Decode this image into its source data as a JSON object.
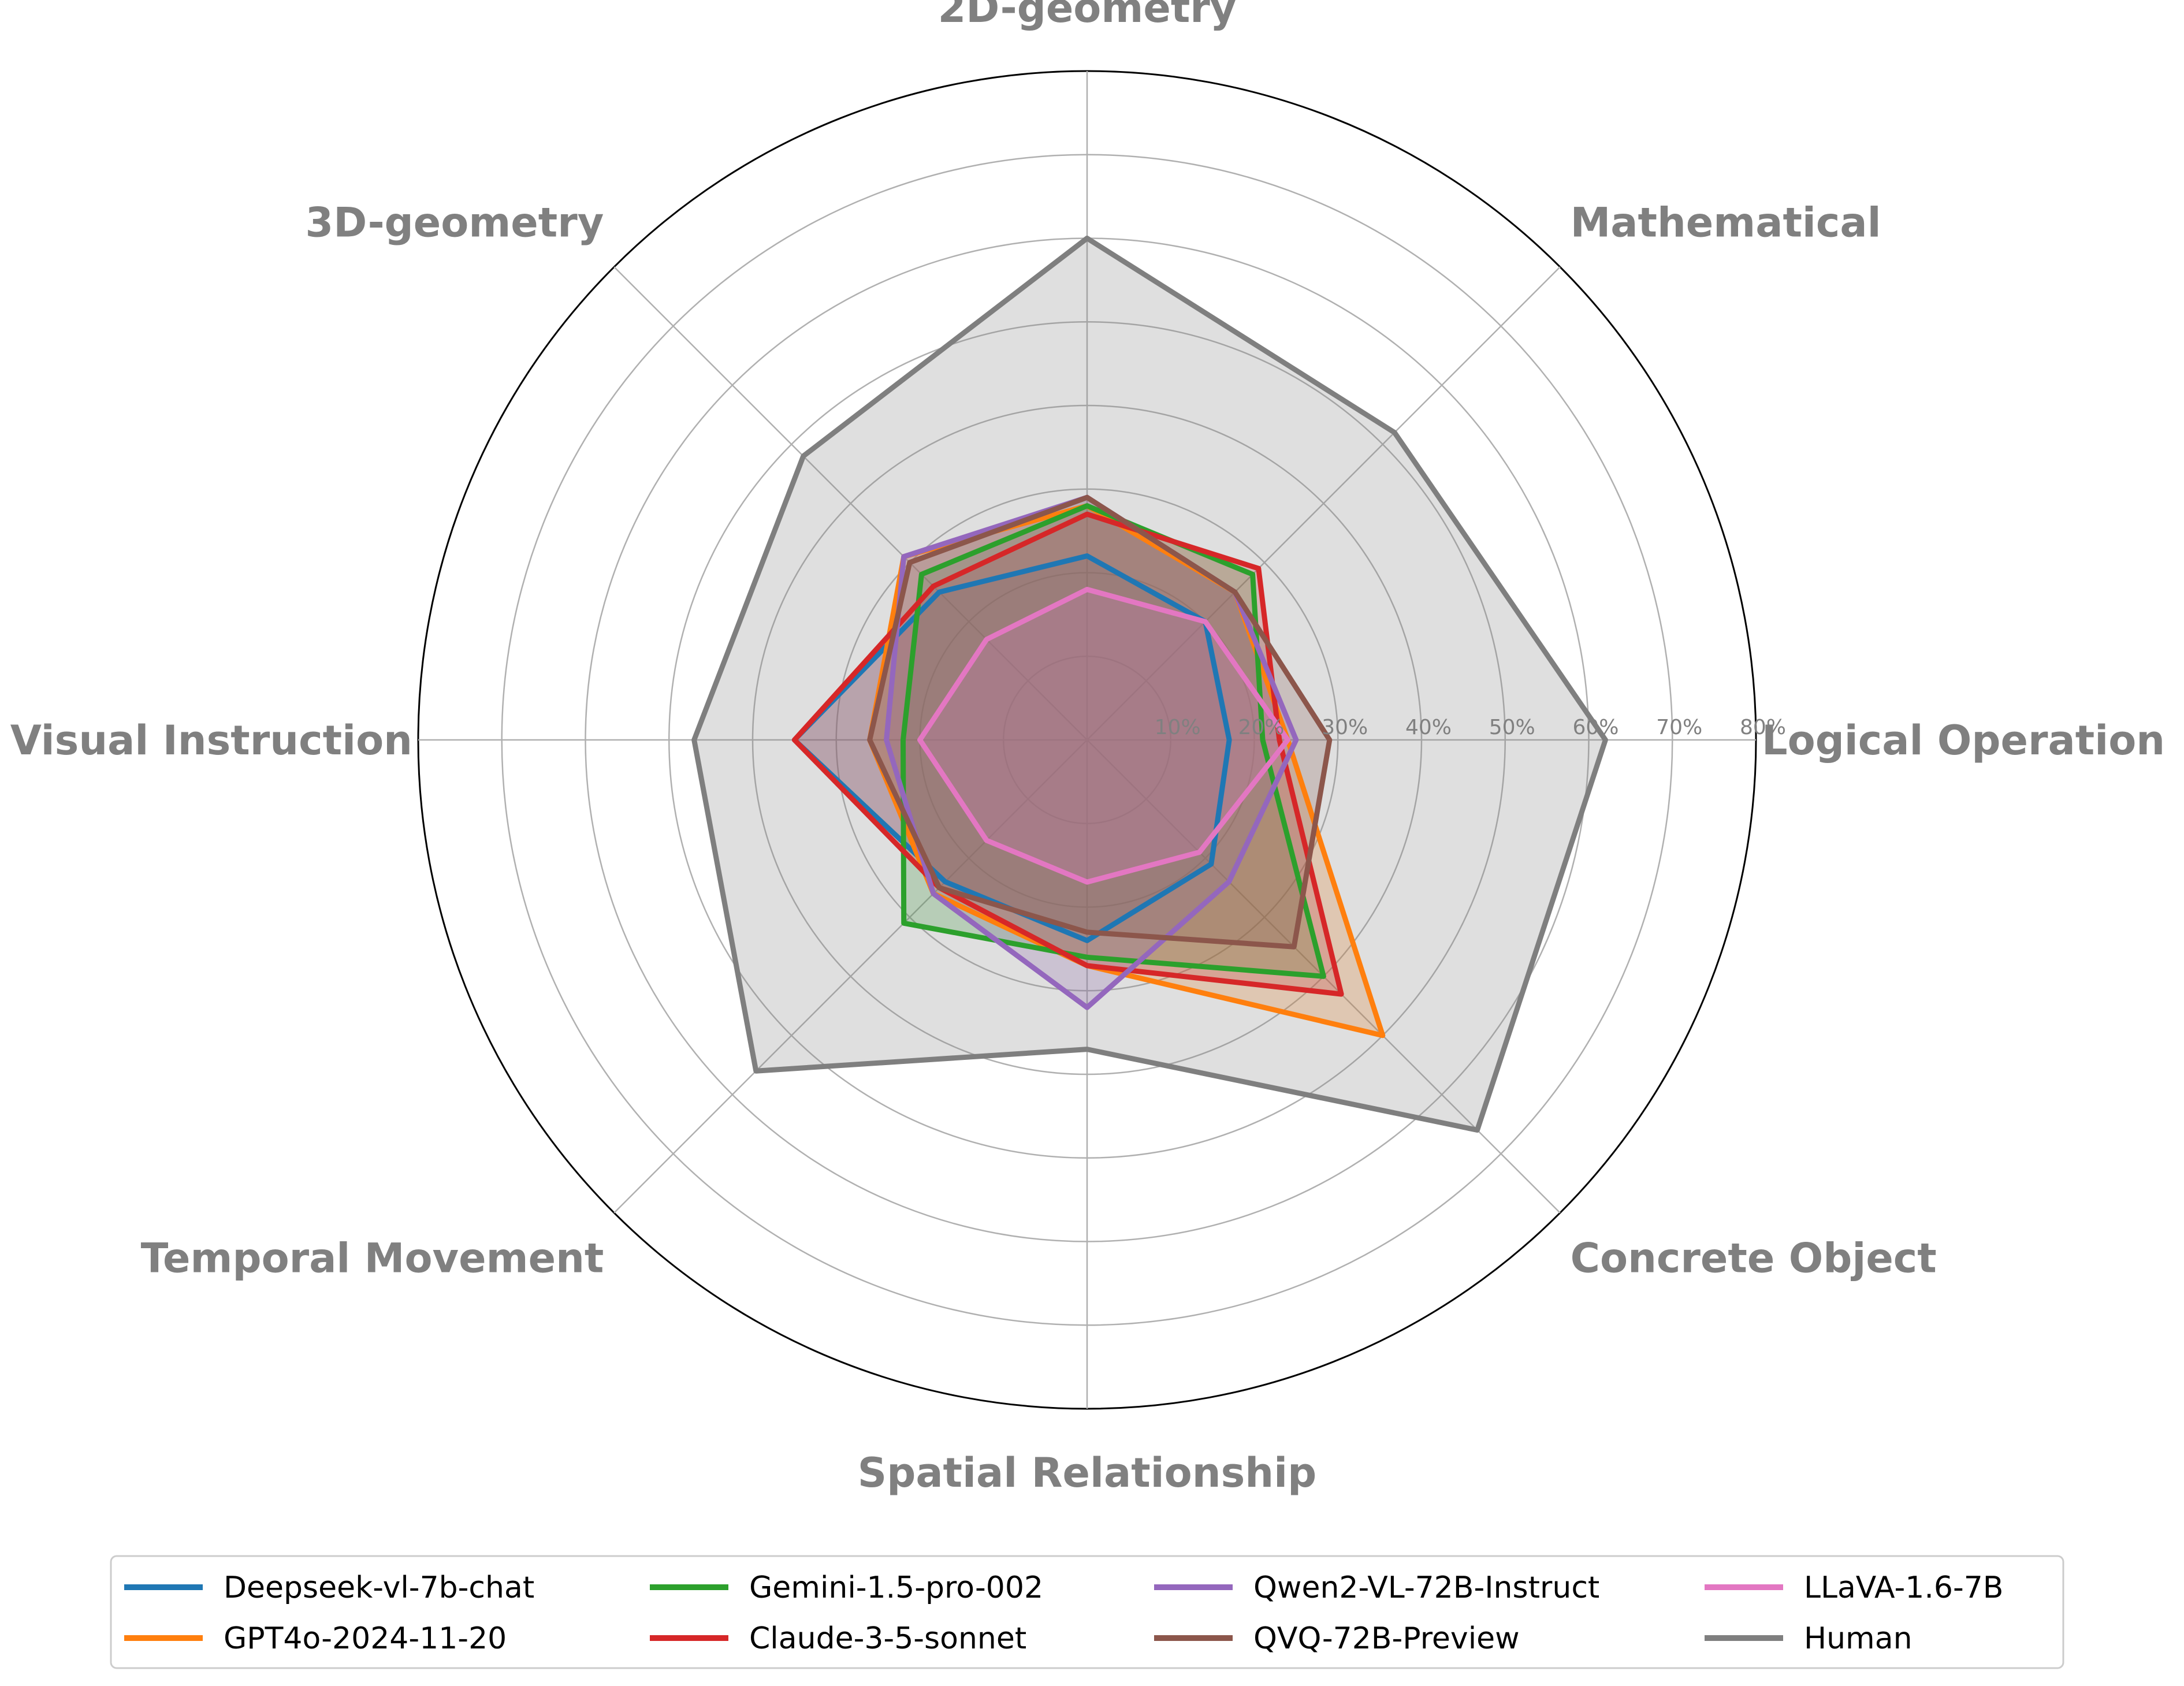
{
  "chart_data": {
    "type": "radar",
    "categories": [
      "Logical Operation",
      "Mathematical",
      "2D-geometry",
      "3D-geometry",
      "Visual Instruction",
      "Temporal Movement",
      "Spatial Relationship",
      "Concrete Object"
    ],
    "rlim": [
      0,
      80
    ],
    "ticks": [
      10,
      20,
      30,
      40,
      50,
      60,
      70,
      80
    ],
    "tick_labels": [
      "10%",
      "20%",
      "30%",
      "40%",
      "50%",
      "60%",
      "70%",
      "80%"
    ],
    "grid": true,
    "legend_position": "bottom",
    "series": [
      {
        "name": "Deepseek-vl-7b-chat",
        "color": "#1f77b4",
        "values": [
          17,
          20,
          22,
          25,
          35,
          24,
          24,
          21
        ]
      },
      {
        "name": "GPT4o-2024-11-20",
        "color": "#ff7f0e",
        "values": [
          24,
          25,
          28,
          31,
          26,
          26,
          27,
          50
        ]
      },
      {
        "name": "Gemini-1.5-pro-002",
        "color": "#2ca02c",
        "values": [
          21,
          28,
          28,
          28,
          22,
          31,
          26,
          40
        ]
      },
      {
        "name": "Claude-3-5-sonnet",
        "color": "#d62728",
        "values": [
          23,
          29,
          27,
          26,
          35,
          25,
          27,
          43
        ]
      },
      {
        "name": "Qwen2-VL-72B-Instruct",
        "color": "#9467bd",
        "values": [
          25,
          25,
          29,
          31,
          24,
          26,
          32,
          24
        ]
      },
      {
        "name": "QVQ-72B-Preview",
        "color": "#8c564b",
        "values": [
          29,
          25,
          29,
          30,
          26,
          25,
          23,
          35
        ]
      },
      {
        "name": "LLaVA-1.6-7B",
        "color": "#e377c2",
        "values": [
          24,
          20,
          18,
          17,
          20,
          17,
          17,
          19
        ]
      },
      {
        "name": "Human",
        "color": "#7f7f7f",
        "values": [
          62,
          52,
          60,
          48,
          47,
          56,
          37,
          66
        ]
      }
    ]
  }
}
